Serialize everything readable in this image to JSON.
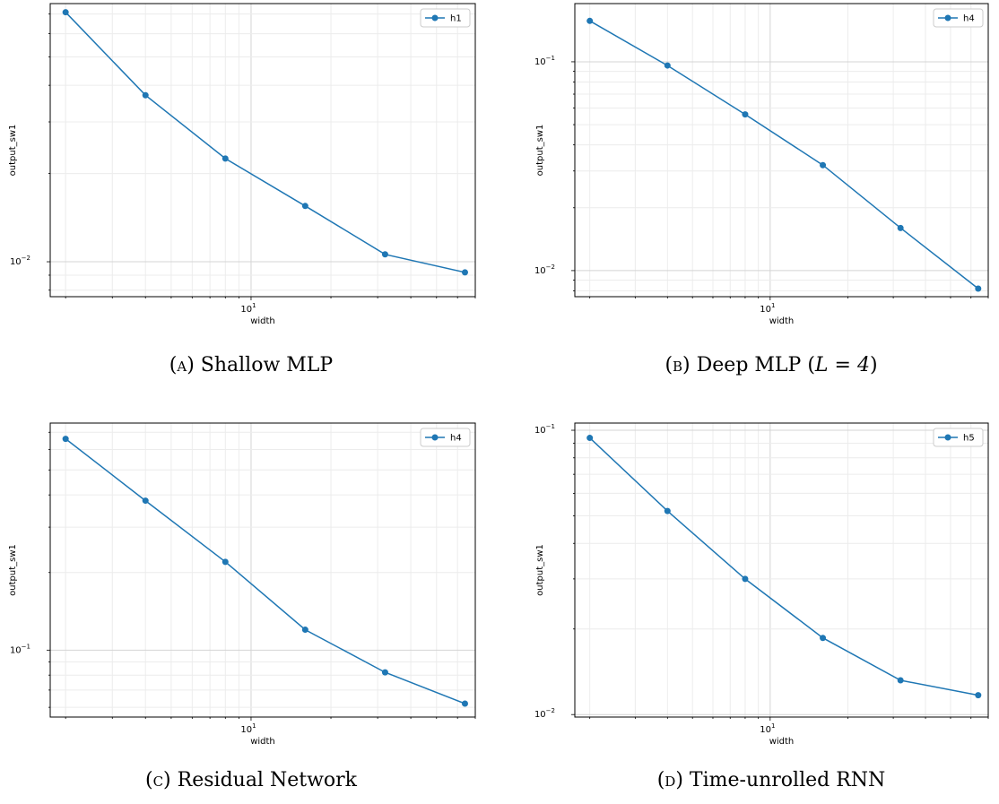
{
  "figure": {
    "captions": [
      {
        "tag": "(a)",
        "text": "Shallow MLP",
        "math": ""
      },
      {
        "tag": "(b)",
        "text": "Deep MLP (",
        "math": "L = 4",
        "after": ")"
      },
      {
        "tag": "(c)",
        "text": "Residual Network",
        "math": ""
      },
      {
        "tag": "(d)",
        "text": "Time-unrolled RNN",
        "math": ""
      }
    ]
  },
  "chart_data": [
    {
      "type": "line",
      "xscale": "log",
      "yscale": "log",
      "xlabel": "width",
      "ylabel": "output_sw1",
      "xlim": [
        1.75,
        70
      ],
      "ylim": [
        0.0076,
        0.076
      ],
      "grid": true,
      "legend": "top-right",
      "x_tick_labels": [
        {
          "value": 10,
          "base": "10",
          "exp": "1"
        }
      ],
      "y_tick_labels": [
        {
          "value": 0.01,
          "base": "10",
          "exp": "−2"
        }
      ],
      "series": [
        {
          "name": "h1",
          "color": "#1f77b4",
          "x": [
            2,
            4,
            8,
            16,
            32,
            64
          ],
          "y": [
            0.071,
            0.037,
            0.0225,
            0.0155,
            0.0106,
            0.0092
          ]
        }
      ]
    },
    {
      "type": "line",
      "xscale": "log",
      "yscale": "log",
      "xlabel": "width",
      "ylabel": "output_sw1",
      "xlim": [
        1.75,
        70
      ],
      "ylim": [
        0.0075,
        0.19
      ],
      "grid": true,
      "legend": "top-right",
      "x_tick_labels": [
        {
          "value": 10,
          "base": "10",
          "exp": "1"
        }
      ],
      "y_tick_labels": [
        {
          "value": 0.1,
          "base": "10",
          "exp": "−1"
        },
        {
          "value": 0.01,
          "base": "10",
          "exp": "−2"
        }
      ],
      "series": [
        {
          "name": "h4",
          "color": "#1f77b4",
          "x": [
            2,
            4,
            8,
            16,
            32,
            64
          ],
          "y": [
            0.157,
            0.096,
            0.056,
            0.032,
            0.016,
            0.0082
          ]
        }
      ]
    },
    {
      "type": "line",
      "xscale": "log",
      "yscale": "log",
      "xlabel": "width",
      "ylabel": "output_sw1",
      "xlim": [
        1.75,
        70
      ],
      "ylim": [
        0.055,
        0.76
      ],
      "grid": true,
      "legend": "top-right",
      "x_tick_labels": [
        {
          "value": 10,
          "base": "10",
          "exp": "1"
        }
      ],
      "y_tick_labels": [
        {
          "value": 0.1,
          "base": "10",
          "exp": "−1"
        }
      ],
      "series": [
        {
          "name": "h4",
          "color": "#1f77b4",
          "x": [
            2,
            4,
            8,
            16,
            32,
            64
          ],
          "y": [
            0.66,
            0.38,
            0.22,
            0.12,
            0.082,
            0.062
          ]
        }
      ]
    },
    {
      "type": "line",
      "xscale": "log",
      "yscale": "log",
      "xlabel": "width",
      "ylabel": "output_sw1",
      "xlim": [
        1.75,
        70
      ],
      "ylim": [
        0.0098,
        0.106
      ],
      "grid": true,
      "legend": "top-right",
      "x_tick_labels": [
        {
          "value": 10,
          "base": "10",
          "exp": "1"
        }
      ],
      "y_tick_labels": [
        {
          "value": 0.1,
          "base": "10",
          "exp": "−1"
        },
        {
          "value": 0.01,
          "base": "10",
          "exp": "−2"
        }
      ],
      "series": [
        {
          "name": "h5",
          "color": "#1f77b4",
          "x": [
            2,
            4,
            8,
            16,
            32,
            64
          ],
          "y": [
            0.094,
            0.052,
            0.03,
            0.0186,
            0.0132,
            0.0117
          ]
        }
      ]
    }
  ]
}
